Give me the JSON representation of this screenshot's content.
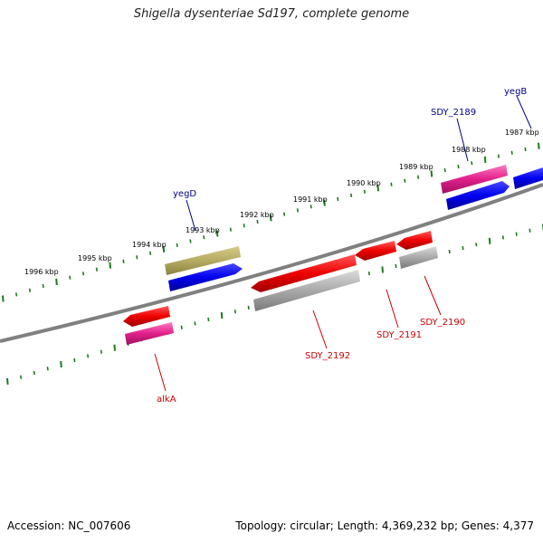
{
  "title": "Shigella dysenteriae Sd197, complete genome",
  "footer": {
    "accession": "Accession: NC_007606",
    "summary": "Topology: circular; Length: 4,369,232 bp; Genes: 4,377"
  },
  "ticks": [
    "1996 kbp",
    "1995 kbp",
    "1994 kbp",
    "1993 kbp",
    "1992 kbp",
    "1991 kbp",
    "1990 kbp",
    "1989 kbp",
    "1988 kbp",
    "1987 kbp"
  ],
  "genes": {
    "top": [
      {
        "label": "yegD",
        "color": "#00008b"
      },
      {
        "label": "SDY_2189",
        "color": "#00008b"
      },
      {
        "label": "yegB",
        "color": "#00008b"
      }
    ],
    "bottom": [
      {
        "label": "alkA",
        "color": "#cc0000"
      },
      {
        "label": "SDY_2192",
        "color": "#cc0000"
      },
      {
        "label": "SDY_2191",
        "color": "#cc0000"
      },
      {
        "label": "SDY_2190",
        "color": "#cc0000"
      }
    ]
  },
  "colors": {
    "backbone": "#808080",
    "tick": "#1e7a1e",
    "cds_blue": "#0000ee",
    "cds_red": "#ee0000",
    "cds_pink": "#e0208a",
    "cds_olive": "#b5ab63",
    "cds_grey": "#a9a9a9"
  }
}
